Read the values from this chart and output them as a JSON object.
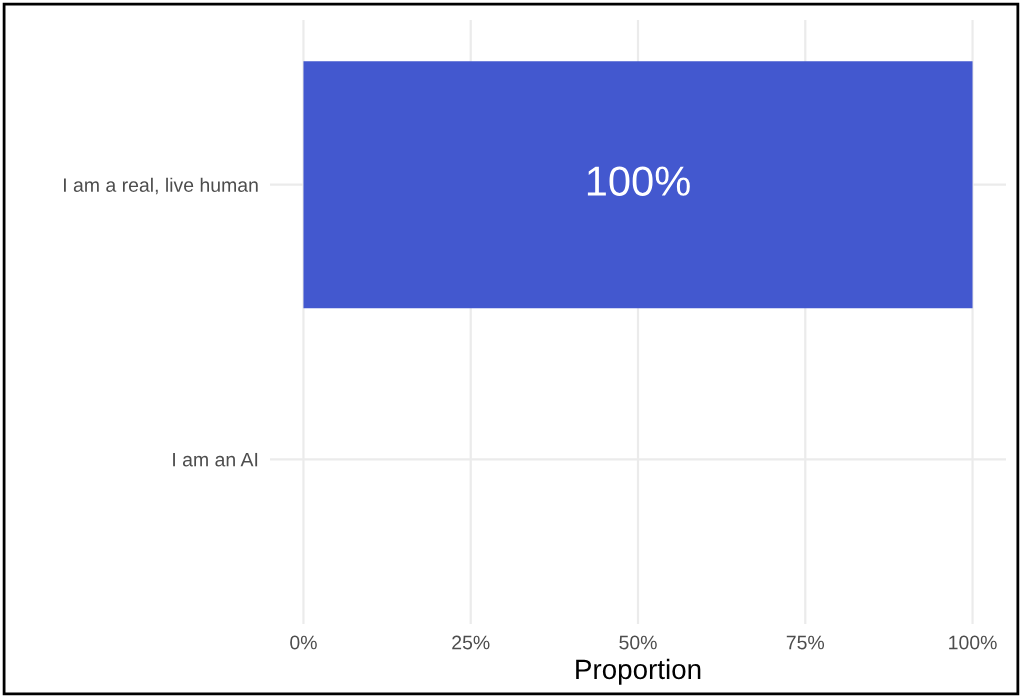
{
  "chart_data": {
    "type": "bar",
    "orientation": "horizontal",
    "categories": [
      "I am a real, live human",
      "I am an AI"
    ],
    "values": [
      1,
      0
    ],
    "color": "#4358cf",
    "value_labels": [
      "100%",
      null
    ],
    "xlabel": "Proportion",
    "xlim": [
      -0.05,
      1.05
    ],
    "xticks": [
      {
        "value": 0,
        "label": "0%"
      },
      {
        "value": 0.25,
        "label": "25%"
      },
      {
        "value": 0.5,
        "label": "50%"
      },
      {
        "value": 0.75,
        "label": "75%"
      },
      {
        "value": 1,
        "label": "100%"
      }
    ],
    "grid": true
  }
}
